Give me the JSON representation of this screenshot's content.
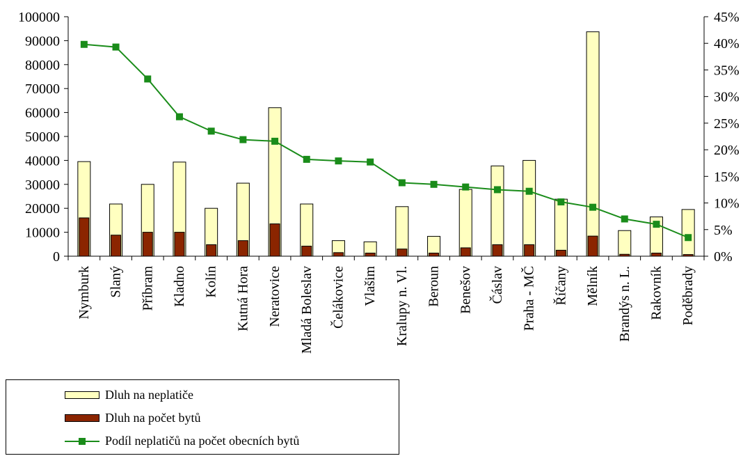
{
  "chart_data": {
    "type": "bar",
    "categories": [
      "Nymburk",
      "Slaný",
      "Příbram",
      "Kladno",
      "Kolín",
      "Kutná Hora",
      "Neratovice",
      "Mladá Boleslav",
      "Čelákovice",
      "Vlašim",
      "Kralupy n. Vl.",
      "Beroun",
      "Benešov",
      "Čáslav",
      "Praha - MČ",
      "Říčany",
      "Mělník",
      "Brandýs n. L.",
      "Rakovník",
      "Poděbrady"
    ],
    "series": [
      {
        "name": "Dluh na neplatiče",
        "type": "bar",
        "axis": "left",
        "color": "#ffffc0",
        "values": [
          39500,
          21800,
          30000,
          39300,
          20000,
          30500,
          62000,
          21800,
          6500,
          6000,
          20700,
          8300,
          27900,
          37700,
          40000,
          23800,
          93700,
          10700,
          16400,
          19500
        ]
      },
      {
        "name": "Dluh na počet bytů",
        "type": "bar",
        "axis": "left",
        "color": "#8b2500",
        "values": [
          16000,
          8800,
          10000,
          10000,
          4800,
          6500,
          13500,
          4200,
          1500,
          1300,
          3000,
          1300,
          3500,
          4800,
          4800,
          2500,
          8400,
          800,
          1300,
          700
        ]
      },
      {
        "name": "Podíl neplatičů na počet obecních bytů",
        "type": "line",
        "axis": "right",
        "color": "#1a8c1a",
        "values": [
          0.398,
          0.393,
          0.333,
          0.262,
          0.235,
          0.219,
          0.216,
          0.182,
          0.179,
          0.177,
          0.138,
          0.135,
          0.13,
          0.125,
          0.122,
          0.102,
          0.092,
          0.07,
          0.06,
          0.035
        ]
      }
    ],
    "ylim": [
      0,
      100000
    ],
    "y_ticks": [
      "0",
      "10000",
      "20000",
      "30000",
      "40000",
      "50000",
      "60000",
      "70000",
      "80000",
      "90000",
      "100000"
    ],
    "y2lim": [
      0,
      0.45
    ],
    "y2_ticks": [
      "0%",
      "5%",
      "10%",
      "15%",
      "20%",
      "25%",
      "30%",
      "35%",
      "40%",
      "45%"
    ],
    "title": "",
    "xlabel": "",
    "ylabel": "",
    "grid": false,
    "legend_position": "bottom-left"
  }
}
